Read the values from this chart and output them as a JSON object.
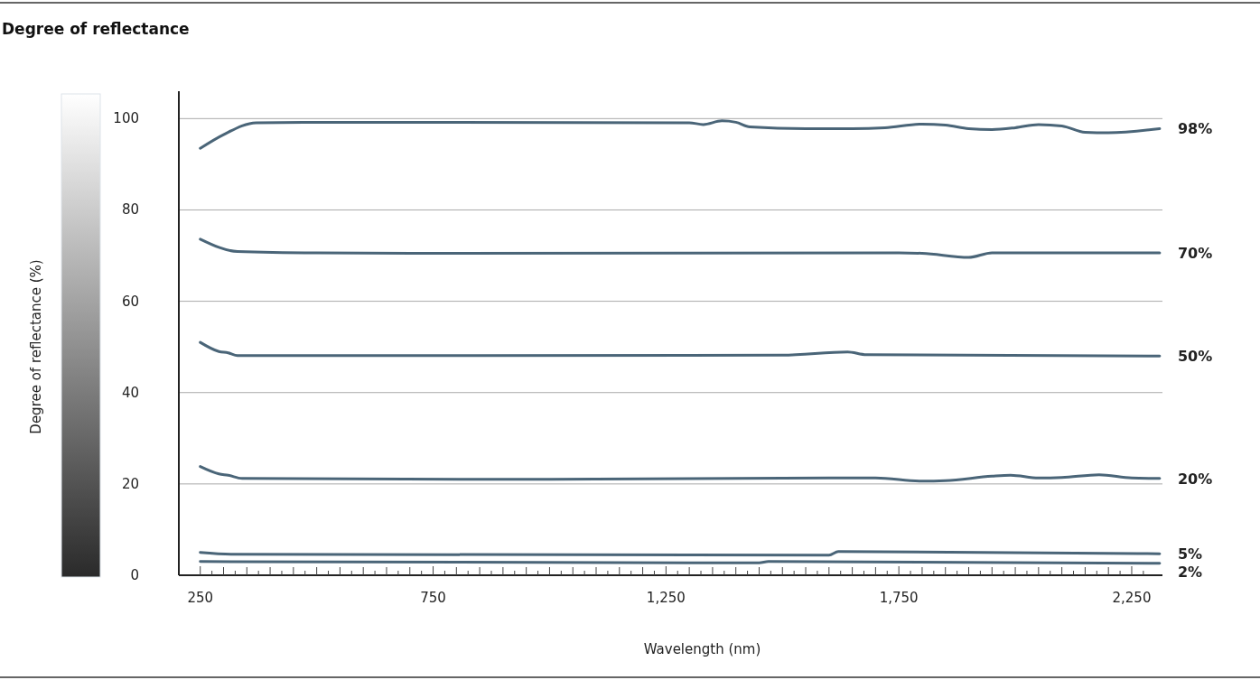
{
  "chart_data": {
    "type": "line",
    "title": "Degree of reflectance",
    "xlabel": "Wavelength (nm)",
    "annotations": [
      "Degree of reflectance (%)"
    ],
    "xlim": [
      204,
      2316
    ],
    "ylim": [
      0,
      106
    ],
    "yticks": [
      0,
      20,
      40,
      60,
      80,
      100
    ],
    "xticks": [
      {
        "value": 250,
        "label": "250"
      },
      {
        "value": 750,
        "label": "750"
      },
      {
        "value": 1250,
        "label": "1,250"
      },
      {
        "value": 1750,
        "label": "1,750"
      },
      {
        "value": 2250,
        "label": "2,250"
      },
      {
        "value": 275,
        "label": null
      },
      {
        "value": 300,
        "label": null
      },
      {
        "value": 325,
        "label": null
      },
      {
        "value": 350,
        "label": null
      },
      {
        "value": 375,
        "label": null
      },
      {
        "value": 400,
        "label": null
      },
      {
        "value": 425,
        "label": null
      },
      {
        "value": 450,
        "label": null
      },
      {
        "value": 475,
        "label": null
      },
      {
        "value": 500,
        "label": null
      },
      {
        "value": 525,
        "label": null
      },
      {
        "value": 550,
        "label": null
      },
      {
        "value": 575,
        "label": null
      },
      {
        "value": 600,
        "label": null
      },
      {
        "value": 625,
        "label": null
      },
      {
        "value": 650,
        "label": null
      },
      {
        "value": 675,
        "label": null
      },
      {
        "value": 700,
        "label": null
      },
      {
        "value": 725,
        "label": null
      },
      {
        "value": 775,
        "label": null
      },
      {
        "value": 800,
        "label": null
      },
      {
        "value": 825,
        "label": null
      },
      {
        "value": 850,
        "label": null
      },
      {
        "value": 875,
        "label": null
      },
      {
        "value": 900,
        "label": null
      },
      {
        "value": 925,
        "label": null
      },
      {
        "value": 950,
        "label": null
      },
      {
        "value": 975,
        "label": null
      },
      {
        "value": 1000,
        "label": null
      },
      {
        "value": 1025,
        "label": null
      },
      {
        "value": 1050,
        "label": null
      },
      {
        "value": 1075,
        "label": null
      },
      {
        "value": 1100,
        "label": null
      },
      {
        "value": 1125,
        "label": null
      },
      {
        "value": 1150,
        "label": null
      },
      {
        "value": 1175,
        "label": null
      },
      {
        "value": 1200,
        "label": null
      },
      {
        "value": 1225,
        "label": null
      },
      {
        "value": 1275,
        "label": null
      },
      {
        "value": 1300,
        "label": null
      },
      {
        "value": 1325,
        "label": null
      },
      {
        "value": 1350,
        "label": null
      },
      {
        "value": 1375,
        "label": null
      },
      {
        "value": 1400,
        "label": null
      },
      {
        "value": 1425,
        "label": null
      },
      {
        "value": 1450,
        "label": null
      },
      {
        "value": 1475,
        "label": null
      },
      {
        "value": 1500,
        "label": null
      },
      {
        "value": 1525,
        "label": null
      },
      {
        "value": 1550,
        "label": null
      },
      {
        "value": 1575,
        "label": null
      },
      {
        "value": 1600,
        "label": null
      },
      {
        "value": 1625,
        "label": null
      },
      {
        "value": 1650,
        "label": null
      },
      {
        "value": 1675,
        "label": null
      },
      {
        "value": 1700,
        "label": null
      },
      {
        "value": 1725,
        "label": null
      },
      {
        "value": 1775,
        "label": null
      },
      {
        "value": 1800,
        "label": null
      },
      {
        "value": 1825,
        "label": null
      },
      {
        "value": 1850,
        "label": null
      },
      {
        "value": 1875,
        "label": null
      },
      {
        "value": 1900,
        "label": null
      },
      {
        "value": 1925,
        "label": null
      },
      {
        "value": 1950,
        "label": null
      },
      {
        "value": 1975,
        "label": null
      },
      {
        "value": 2000,
        "label": null
      },
      {
        "value": 2025,
        "label": null
      },
      {
        "value": 2050,
        "label": null
      },
      {
        "value": 2075,
        "label": null
      },
      {
        "value": 2100,
        "label": null
      },
      {
        "value": 2125,
        "label": null
      },
      {
        "value": 2150,
        "label": null
      },
      {
        "value": 2175,
        "label": null
      },
      {
        "value": 2200,
        "label": null
      },
      {
        "value": 2225,
        "label": null
      },
      {
        "value": 2275,
        "label": null
      }
    ],
    "grid": "y",
    "series": [
      {
        "name": "98%",
        "color": "#4a6578",
        "x": [
          250,
          300,
          370,
          500,
          1300,
          1330,
          1370,
          1400,
          1430,
          1550,
          1650,
          1720,
          1800,
          1850,
          1900,
          1950,
          2000,
          2050,
          2100,
          2150,
          2200,
          2310
        ],
        "values": [
          93.5,
          96.5,
          99.1,
          99.2,
          99.1,
          98.7,
          99.5,
          99.2,
          98.2,
          97.8,
          97.8,
          98.0,
          98.8,
          98.6,
          97.8,
          97.6,
          98.0,
          98.7,
          98.4,
          97.0,
          96.9,
          97.8
        ]
      },
      {
        "name": "70%",
        "color": "#4a6578",
        "x": [
          250,
          330,
          500,
          800,
          1750,
          1800,
          1900,
          1950,
          2310
        ],
        "values": [
          73.6,
          70.9,
          70.6,
          70.5,
          70.6,
          70.5,
          69.6,
          70.6,
          70.6
        ]
      },
      {
        "name": "50%",
        "color": "#4a6578",
        "x": [
          250,
          290,
          310,
          330,
          1500,
          1640,
          1680,
          2310
        ],
        "values": [
          51.0,
          49.0,
          48.7,
          48.1,
          48.2,
          48.9,
          48.3,
          48.0
        ]
      },
      {
        "name": "20%",
        "color": "#4a6578",
        "x": [
          250,
          290,
          310,
          340,
          1000,
          1600,
          1700,
          1800,
          1850,
          1950,
          1990,
          2050,
          2100,
          2180,
          2250,
          2310
        ],
        "values": [
          23.8,
          22.2,
          21.9,
          21.2,
          21.0,
          21.3,
          21.3,
          20.6,
          20.7,
          21.7,
          21.9,
          21.3,
          21.4,
          22.0,
          21.3,
          21.2
        ]
      },
      {
        "name": "5%",
        "color": "#4a6578",
        "x": [
          250,
          320,
          1600,
          1620,
          2310
        ],
        "values": [
          5.0,
          4.6,
          4.4,
          5.2,
          4.7
        ]
      },
      {
        "name": "2%",
        "color": "#4a6578",
        "x": [
          250,
          1450,
          1470,
          2310
        ],
        "values": [
          3.0,
          2.7,
          3.0,
          2.6
        ]
      }
    ]
  }
}
